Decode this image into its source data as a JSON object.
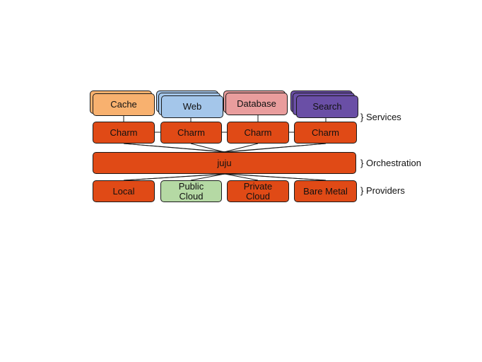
{
  "services": [
    {
      "label": "Cache",
      "fill": "#f8b16f"
    },
    {
      "label": "Web",
      "fill": "#a4c6ea"
    },
    {
      "label": "Database",
      "fill": "#e99d9d"
    },
    {
      "label": "Search",
      "fill": "#6a4fa6"
    }
  ],
  "charm_label": "Charm",
  "orchestrator_label": "juju",
  "providers": [
    {
      "label": "Local"
    },
    {
      "label": "Public\nCloud"
    },
    {
      "label": "Private\nCloud"
    },
    {
      "label": "Bare Metal"
    }
  ],
  "layers": {
    "services": "} Services",
    "orchestration": "} Orchestration",
    "providers": "} Providers"
  },
  "colors": {
    "charm": "#e04a16",
    "public_cloud": "#b5d9a4",
    "stroke": "#1a1a1a"
  }
}
